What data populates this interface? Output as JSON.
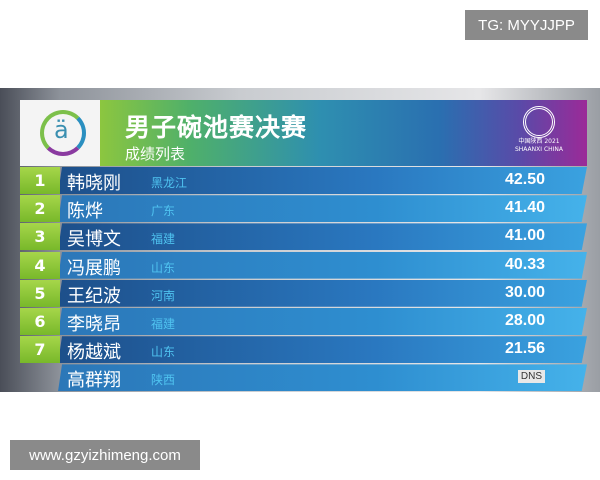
{
  "watermarks": {
    "top": "TG: MYYJJPP",
    "bottom": "www.gzyizhimeng.com"
  },
  "board": {
    "title": "男子碗池赛决赛",
    "subtitle": "成绩列表",
    "emblem_text": "中国陕西 2021 SHAANXI CHINA",
    "rows": [
      {
        "rank": "1",
        "name": "韩晓刚",
        "province": "黑龙江",
        "score": "42.50"
      },
      {
        "rank": "2",
        "name": "陈烨",
        "province": "广东",
        "score": "41.40"
      },
      {
        "rank": "3",
        "name": "吴博文",
        "province": "福建",
        "score": "41.00"
      },
      {
        "rank": "4",
        "name": "冯展鹏",
        "province": "山东",
        "score": "40.33"
      },
      {
        "rank": "5",
        "name": "王纪波",
        "province": "河南",
        "score": "30.00"
      },
      {
        "rank": "6",
        "name": "李晓昂",
        "province": "福建",
        "score": "28.00"
      },
      {
        "rank": "7",
        "name": "杨越斌",
        "province": "山东",
        "score": "21.56"
      },
      {
        "rank": "",
        "name": "高群翔",
        "province": "陕西",
        "status": "DNS"
      }
    ]
  },
  "colors": {
    "rank_green": "#8cc63f",
    "bar_blue": "#2a78c0",
    "province_cyan": "#4fc3f0"
  }
}
